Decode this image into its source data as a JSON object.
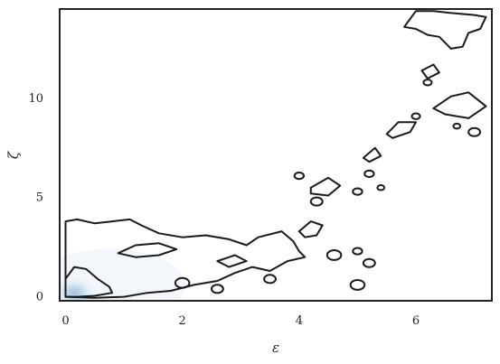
{
  "chart_data": {
    "type": "kde-contour",
    "xlabel": "ε",
    "ylabel": "ζ",
    "xlim": [
      -0.1,
      7.3
    ],
    "ylim": [
      -0.2,
      14.5
    ],
    "x_ticks": [
      0,
      2,
      4,
      6
    ],
    "y_ticks": [
      0,
      5,
      10
    ],
    "grid": false,
    "fill_colormap": [
      "#ffffff",
      "#dbe9f6",
      "#6aaed6",
      "#08519c"
    ],
    "line_color": "#1a1a1a",
    "density_peak": {
      "x": 0.15,
      "y": 0.2
    },
    "contours": [
      {
        "name": "outer-lower-band",
        "points": [
          [
            0.0,
            0.0
          ],
          [
            0.0,
            2.0
          ],
          [
            0.0,
            3.8
          ],
          [
            0.2,
            3.9
          ],
          [
            0.5,
            3.7
          ],
          [
            0.8,
            3.8
          ],
          [
            1.1,
            3.9
          ],
          [
            1.3,
            3.6
          ],
          [
            1.6,
            3.2
          ],
          [
            2.0,
            3.0
          ],
          [
            2.4,
            3.1
          ],
          [
            2.8,
            2.9
          ],
          [
            3.1,
            2.6
          ],
          [
            3.3,
            3.0
          ],
          [
            3.7,
            3.3
          ],
          [
            3.9,
            2.8
          ],
          [
            4.0,
            2.3
          ],
          [
            4.1,
            2.0
          ],
          [
            3.8,
            1.8
          ],
          [
            3.5,
            1.3
          ],
          [
            3.2,
            1.5
          ],
          [
            2.9,
            1.2
          ],
          [
            2.6,
            0.8
          ],
          [
            2.2,
            0.6
          ],
          [
            1.8,
            0.3
          ],
          [
            1.4,
            0.2
          ],
          [
            1.0,
            0.0
          ],
          [
            0.5,
            -0.05
          ],
          [
            0.0,
            0.0
          ]
        ]
      },
      {
        "name": "inner-origin",
        "points": [
          [
            0.0,
            0.0
          ],
          [
            0.0,
            0.9
          ],
          [
            0.15,
            1.5
          ],
          [
            0.35,
            1.4
          ],
          [
            0.55,
            0.9
          ],
          [
            0.75,
            0.5
          ],
          [
            0.8,
            0.2
          ],
          [
            0.5,
            0.05
          ],
          [
            0.2,
            0.0
          ],
          [
            0.0,
            0.0
          ]
        ]
      },
      {
        "name": "mid-island-a",
        "points": [
          [
            0.9,
            2.2
          ],
          [
            1.2,
            2.6
          ],
          [
            1.6,
            2.7
          ],
          [
            1.9,
            2.4
          ],
          [
            1.6,
            2.1
          ],
          [
            1.2,
            2.0
          ],
          [
            0.9,
            2.2
          ]
        ]
      },
      {
        "name": "mid-island-b",
        "points": [
          [
            2.6,
            1.8
          ],
          [
            2.9,
            2.1
          ],
          [
            3.1,
            1.8
          ],
          [
            2.8,
            1.5
          ],
          [
            2.6,
            1.8
          ]
        ]
      },
      {
        "name": "middle-island-1",
        "points": [
          [
            4.0,
            3.3
          ],
          [
            4.2,
            3.8
          ],
          [
            4.4,
            3.6
          ],
          [
            4.3,
            3.1
          ],
          [
            4.1,
            3.0
          ],
          [
            4.0,
            3.3
          ]
        ]
      },
      {
        "name": "middle-island-2",
        "points": [
          [
            4.2,
            5.5
          ],
          [
            4.5,
            6.0
          ],
          [
            4.7,
            5.6
          ],
          [
            4.5,
            5.1
          ],
          [
            4.2,
            5.2
          ],
          [
            4.2,
            5.5
          ]
        ]
      },
      {
        "name": "middle-island-3",
        "points": [
          [
            5.1,
            7.0
          ],
          [
            5.3,
            7.5
          ],
          [
            5.4,
            7.1
          ],
          [
            5.2,
            6.8
          ],
          [
            5.1,
            7.0
          ]
        ]
      },
      {
        "name": "upper-island-1",
        "points": [
          [
            5.5,
            8.2
          ],
          [
            5.7,
            8.8
          ],
          [
            6.0,
            8.8
          ],
          [
            5.9,
            8.3
          ],
          [
            5.6,
            8.0
          ],
          [
            5.5,
            8.2
          ]
        ]
      },
      {
        "name": "upper-island-2",
        "points": [
          [
            6.3,
            9.5
          ],
          [
            6.6,
            10.1
          ],
          [
            6.9,
            10.3
          ],
          [
            7.2,
            9.6
          ],
          [
            6.9,
            9.0
          ],
          [
            6.5,
            9.2
          ],
          [
            6.3,
            9.5
          ]
        ]
      },
      {
        "name": "upper-island-3",
        "points": [
          [
            6.1,
            11.4
          ],
          [
            6.3,
            11.7
          ],
          [
            6.4,
            11.3
          ],
          [
            6.2,
            11.0
          ],
          [
            6.1,
            11.4
          ]
        ]
      },
      {
        "name": "top-island",
        "points": [
          [
            5.8,
            13.6
          ],
          [
            6.0,
            14.4
          ],
          [
            6.3,
            14.4
          ],
          [
            6.6,
            14.3
          ],
          [
            7.0,
            14.2
          ],
          [
            7.2,
            14.1
          ],
          [
            7.1,
            13.5
          ],
          [
            6.9,
            13.3
          ],
          [
            6.8,
            12.6
          ],
          [
            6.6,
            12.5
          ],
          [
            6.4,
            13.1
          ],
          [
            6.2,
            13.2
          ],
          [
            6.0,
            13.5
          ],
          [
            5.8,
            13.6
          ]
        ]
      }
    ],
    "blobs": [
      {
        "name": "blob-1",
        "x": 2.0,
        "y": 0.7,
        "r": 0.12
      },
      {
        "name": "blob-2",
        "x": 2.6,
        "y": 0.4,
        "r": 0.1
      },
      {
        "name": "blob-3",
        "x": 3.5,
        "y": 0.9,
        "r": 0.1
      },
      {
        "name": "blob-4",
        "x": 4.6,
        "y": 2.1,
        "r": 0.12
      },
      {
        "name": "blob-5",
        "x": 5.0,
        "y": 0.6,
        "r": 0.12
      },
      {
        "name": "blob-6",
        "x": 5.2,
        "y": 1.7,
        "r": 0.1
      },
      {
        "name": "blob-7",
        "x": 5.0,
        "y": 2.3,
        "r": 0.08
      },
      {
        "name": "blob-8",
        "x": 4.3,
        "y": 4.8,
        "r": 0.1
      },
      {
        "name": "blob-9",
        "x": 4.0,
        "y": 6.1,
        "r": 0.08
      },
      {
        "name": "blob-10",
        "x": 5.2,
        "y": 6.2,
        "r": 0.08
      },
      {
        "name": "blob-11",
        "x": 5.0,
        "y": 5.3,
        "r": 0.08
      },
      {
        "name": "blob-12",
        "x": 5.4,
        "y": 5.5,
        "r": 0.06
      },
      {
        "name": "blob-13",
        "x": 6.0,
        "y": 9.1,
        "r": 0.07
      },
      {
        "name": "blob-14",
        "x": 6.2,
        "y": 10.8,
        "r": 0.07
      },
      {
        "name": "blob-15",
        "x": 7.0,
        "y": 8.3,
        "r": 0.1
      },
      {
        "name": "blob-16",
        "x": 6.7,
        "y": 8.6,
        "r": 0.06
      }
    ]
  }
}
